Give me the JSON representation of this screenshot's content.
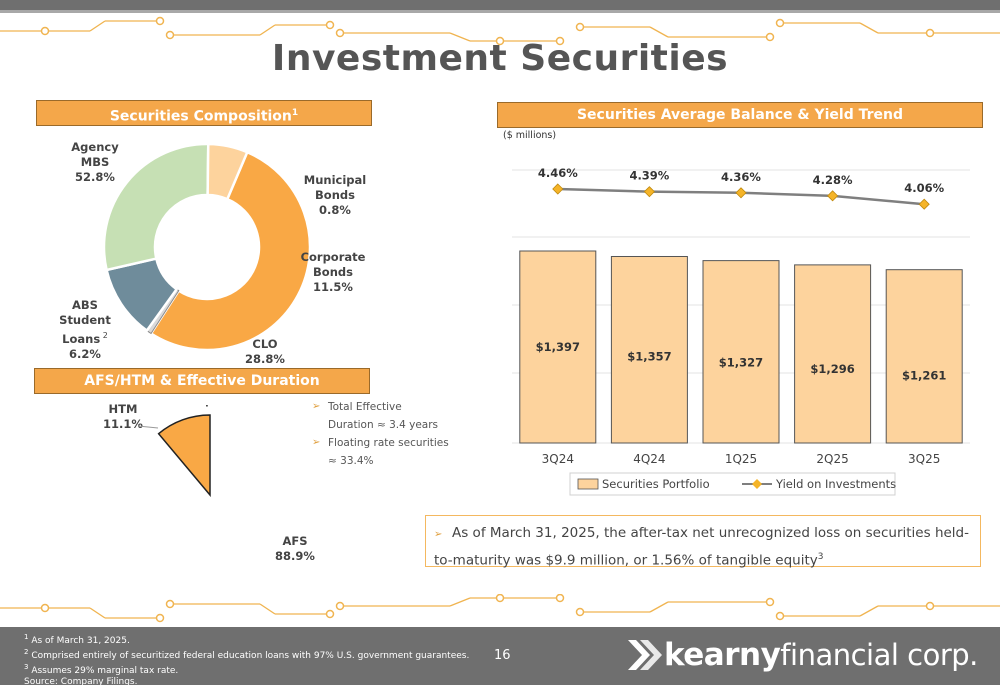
{
  "title": "Investment Securities",
  "composition": {
    "header": "Securities Composition",
    "header_sup": "1",
    "slices": [
      {
        "label": "Agency\nMBS",
        "pct": 52.8,
        "pct_text": "52.8%",
        "color": "#f9a845"
      },
      {
        "label": "Municipal\nBonds",
        "pct": 0.8,
        "pct_text": "0.8%",
        "color": "#d9d9d9"
      },
      {
        "label": "Corporate\nBonds",
        "pct": 11.5,
        "pct_text": "11.5%",
        "color": "#6f8c9b"
      },
      {
        "label": "CLO",
        "pct": 28.8,
        "pct_text": "28.8%",
        "color": "#c6e0b4"
      },
      {
        "label": "ABS\nStudent\nLoans",
        "label_sup": "2",
        "pct": 6.2,
        "pct_text": "6.2%",
        "color": "#fdd39d"
      }
    ]
  },
  "afs_htm": {
    "header": "AFS/HTM & Effective Duration",
    "slices": [
      {
        "label": "HTM",
        "pct": 11.1,
        "pct_text": "11.1%",
        "color": "#fdd39d"
      },
      {
        "label": "AFS",
        "pct": 88.9,
        "pct_text": "88.9%",
        "color": "#f9a845"
      }
    ],
    "bullets": [
      {
        "line1": "Total Effective",
        "line2": "Duration ≈ 3.4 years"
      },
      {
        "line1": "Floating rate securities",
        "line2": "≈ 33.4%"
      }
    ]
  },
  "trend": {
    "header": "Securities Average Balance & Yield Trend",
    "units": "($ millions)"
  },
  "chart_data": {
    "type": "bar",
    "categories": [
      "3Q24",
      "4Q24",
      "1Q25",
      "2Q25",
      "3Q25"
    ],
    "series": [
      {
        "name": "Securities Portfolio",
        "values": [
          1397,
          1357,
          1327,
          1296,
          1261
        ],
        "labels": [
          "$1,397",
          "$1,357",
          "$1,327",
          "$1,296",
          "$1,261"
        ],
        "color": "#fdd39d"
      },
      {
        "name": "Yield on Investments",
        "type": "line",
        "values": [
          4.46,
          4.39,
          4.36,
          4.28,
          4.06
        ],
        "labels": [
          "4.46%",
          "4.39%",
          "4.36%",
          "4.28%",
          "4.06%"
        ],
        "color": "#7f7f7f",
        "marker_color": "#f5b428"
      }
    ],
    "legend_position": "bottom",
    "grid": true
  },
  "callout": {
    "text": "As of March 31, 2025, the after-tax net unrecognized loss on securities held-to-maturity was $9.9 million, or 1.56% of tangible equity",
    "sup": "3"
  },
  "footnotes": [
    {
      "sup": "1",
      "text": " As of March 31, 2025."
    },
    {
      "sup": "2",
      "text": " Comprised entirely of securitized federal education loans with 97% U.S. government guarantees."
    },
    {
      "sup": "3",
      "text": " Assumes 29% marginal tax rate."
    },
    {
      "sup": "",
      "text": " Source: Company Filings."
    }
  ],
  "page_number": "16",
  "logo": {
    "bold": "kearny",
    "light": "financial corp."
  },
  "colors": {
    "accent": "#f4a74a",
    "footer": "#6f6f6f",
    "title": "#555555"
  }
}
